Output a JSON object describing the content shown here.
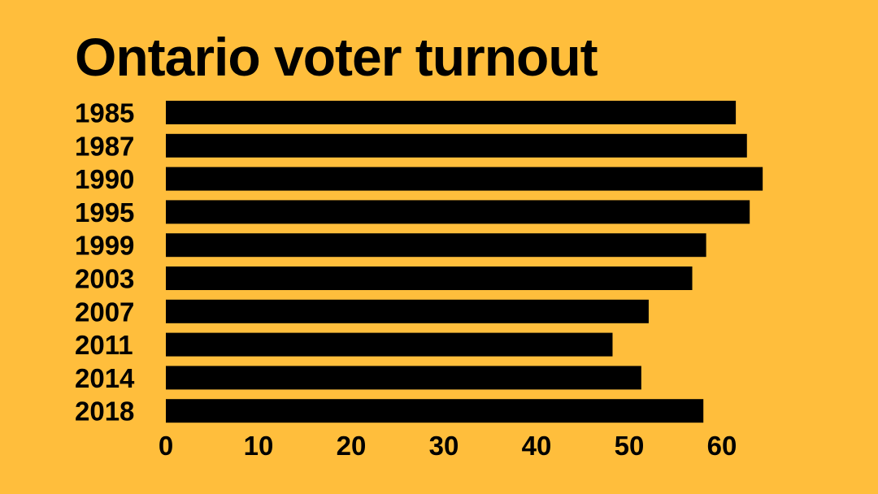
{
  "colors": {
    "background": "#FFBE3C",
    "bar": "#000000",
    "text": "#000000"
  },
  "chart_data": {
    "type": "bar",
    "orientation": "horizontal",
    "title": "Ontario voter turnout",
    "xlabel": "",
    "ylabel": "",
    "categories": [
      "1985",
      "1987",
      "1990",
      "1995",
      "1999",
      "2003",
      "2007",
      "2011",
      "2014",
      "2018"
    ],
    "values": [
      61.5,
      62.7,
      64.4,
      63.0,
      58.3,
      56.8,
      52.1,
      48.2,
      51.3,
      58.0
    ],
    "xlim": [
      0,
      65
    ],
    "xticks": [
      0,
      10,
      20,
      30,
      40,
      50,
      60
    ],
    "grid": false,
    "legend": "none"
  }
}
